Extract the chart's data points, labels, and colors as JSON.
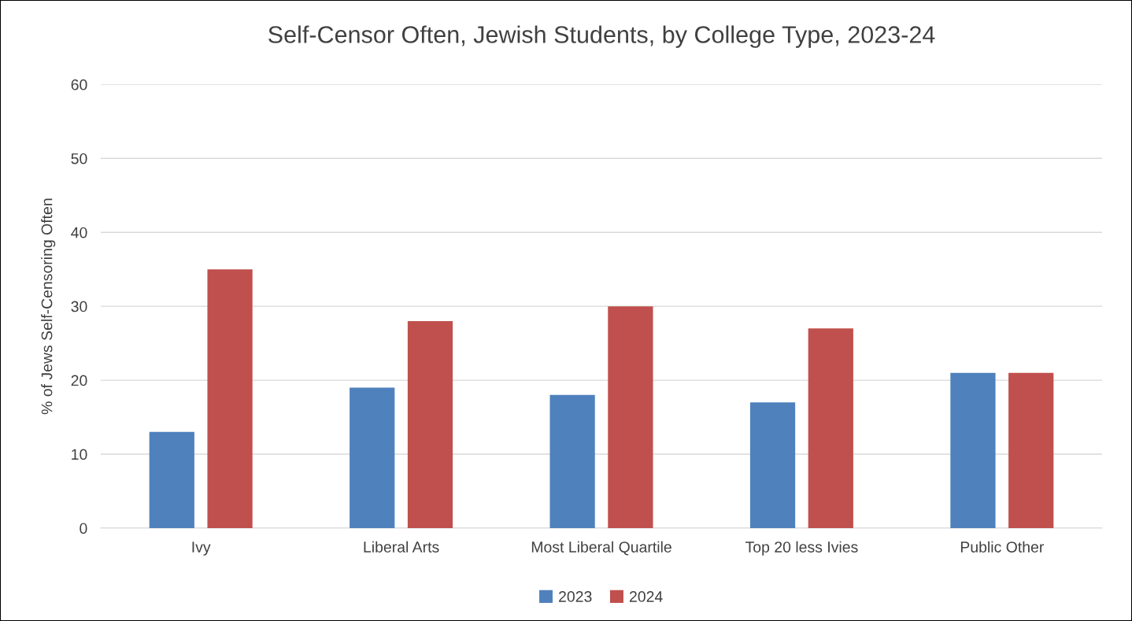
{
  "chart_data": {
    "type": "bar",
    "title": "Self-Censor Often, Jewish Students, by College Type, 2023-24",
    "ylabel": "% of Jews Self-Censoring Often",
    "categories": [
      "Ivy",
      "Liberal Arts",
      "Most Liberal Quartile",
      "Top 20 less Ivies",
      "Public Other"
    ],
    "series": [
      {
        "name": "2023",
        "color": "#4f81bd",
        "values": [
          13,
          19,
          18,
          17,
          21
        ]
      },
      {
        "name": "2024",
        "color": "#c0504d",
        "values": [
          35,
          28,
          30,
          27,
          21
        ]
      }
    ],
    "ylim": [
      0,
      60
    ],
    "yticks": [
      0,
      10,
      20,
      30,
      40,
      50,
      60
    ],
    "grid": "y",
    "legend": "bottom"
  }
}
